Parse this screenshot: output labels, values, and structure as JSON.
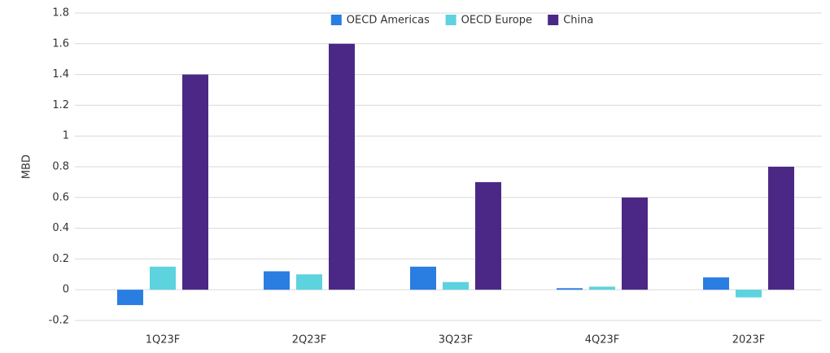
{
  "chart_data": {
    "type": "bar",
    "y_label": "MBD",
    "categories": [
      "1Q23F",
      "2Q23F",
      "3Q23F",
      "4Q23F",
      "2023F"
    ],
    "series": [
      {
        "name": "OECD Americas",
        "color": "#2a7de1",
        "values": [
          -0.1,
          0.12,
          0.15,
          0.01,
          0.08
        ]
      },
      {
        "name": "OECD Europe",
        "color": "#5dd3e0",
        "values": [
          0.15,
          0.1,
          0.05,
          0.02,
          -0.05
        ]
      },
      {
        "name": "China",
        "color": "#4b2885",
        "values": [
          1.4,
          1.6,
          0.7,
          0.6,
          0.8
        ]
      }
    ],
    "ylim": [
      -0.2,
      1.8
    ],
    "yticks": [
      -0.2,
      0,
      0.2,
      0.4,
      0.6,
      0.8,
      1,
      1.2,
      1.4,
      1.6,
      1.8
    ],
    "grid": true,
    "legend": "top"
  }
}
